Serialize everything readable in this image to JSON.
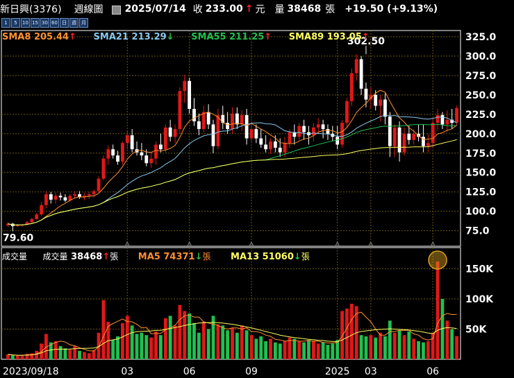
{
  "header": {
    "title": "新日興(3376)",
    "period": "週線圖",
    "date": "2025/07/14",
    "close_label": "收",
    "close": "233.00",
    "close_arrow": "↑",
    "close_unit": "元",
    "volume_label": "量",
    "volume": "38468",
    "volume_unit": "張",
    "change": "+19.50 (+9.13%)"
  },
  "period_buttons": [
    "1",
    "5",
    "10",
    "15",
    "30",
    "60",
    "日",
    "週",
    "月"
  ],
  "price_legend": [
    {
      "label": "SMA8",
      "value": "205.44",
      "arrow": "↑",
      "color": "#ff9030"
    },
    {
      "label": "SMA21",
      "value": "213.29",
      "arrow": "↓",
      "color": "#88c8f0"
    },
    {
      "label": "SMA55",
      "value": "211.25",
      "arrow": "↑",
      "color": "#20c050"
    },
    {
      "label": "SMA89",
      "value": "193.05",
      "arrow": "↑",
      "color": "#ffff60"
    }
  ],
  "volume_legend": {
    "title": "成交量",
    "vol_label": "成交量",
    "vol_value": "38468",
    "vol_arrow": "↑",
    "vol_unit": "張",
    "ma5_label": "MA5",
    "ma5_value": "74371",
    "ma5_arrow": "↓",
    "ma5_unit": "張",
    "ma13_label": "MA13",
    "ma13_value": "51060",
    "ma13_arrow": "↓",
    "ma13_unit": "張"
  },
  "colors": {
    "up": "#e01818",
    "down": "#ffffff",
    "grid": "#6b5a10",
    "vol_up": "#e01818",
    "vol_down": "#20c050",
    "vol_flat": "#cccccc",
    "highlight": "#d8a020"
  },
  "chart_data": {
    "type": "candlestick",
    "price_axis": {
      "ticks": [
        75.0,
        100.0,
        125.0,
        150.0,
        175.0,
        200.0,
        225.0,
        250.0,
        275.0,
        300.0,
        325.0
      ],
      "ylim": [
        55,
        333
      ]
    },
    "volume_axis": {
      "ticks": [
        "50K",
        "100K",
        "150K"
      ],
      "tick_values": [
        50000,
        100000,
        150000
      ],
      "ylim": [
        0,
        185000
      ]
    },
    "x_labels": [
      {
        "label": "2023/09/18",
        "index": 0
      },
      {
        "label": "03",
        "index": 25
      },
      {
        "label": "06",
        "index": 38
      },
      {
        "label": "09",
        "index": 51
      },
      {
        "label": "2025",
        "index": 69
      },
      {
        "label": "03",
        "index": 76
      },
      {
        "label": "06",
        "index": 89
      }
    ],
    "annotations": [
      {
        "text": "302.50",
        "type": "high",
        "index": 75,
        "value": 302.5
      },
      {
        "text": "79.60",
        "type": "low",
        "index": 1,
        "value": 79.6
      }
    ],
    "candles": [
      [
        82,
        86,
        79.6,
        84
      ],
      [
        84,
        85,
        79.6,
        81
      ],
      [
        81,
        84,
        80,
        82
      ],
      [
        82,
        84,
        80,
        83
      ],
      [
        83,
        88,
        82,
        86
      ],
      [
        86,
        92,
        85,
        90
      ],
      [
        90,
        98,
        89,
        96
      ],
      [
        96,
        112,
        94,
        108
      ],
      [
        108,
        126,
        104,
        122
      ],
      [
        122,
        125,
        110,
        115
      ],
      [
        115,
        124,
        110,
        120
      ],
      [
        120,
        124,
        114,
        118
      ],
      [
        118,
        122,
        112,
        114
      ],
      [
        114,
        122,
        112,
        120
      ],
      [
        120,
        126,
        116,
        122
      ],
      [
        122,
        126,
        116,
        118
      ],
      [
        118,
        124,
        114,
        120
      ],
      [
        120,
        125,
        116,
        122
      ],
      [
        122,
        128,
        118,
        126
      ],
      [
        126,
        145,
        124,
        142
      ],
      [
        142,
        172,
        140,
        168
      ],
      [
        168,
        185,
        160,
        180
      ],
      [
        180,
        186,
        168,
        172
      ],
      [
        172,
        178,
        160,
        164
      ],
      [
        164,
        190,
        160,
        188
      ],
      [
        188,
        204,
        180,
        198
      ],
      [
        198,
        206,
        176,
        180
      ],
      [
        180,
        190,
        172,
        176
      ],
      [
        176,
        188,
        166,
        172
      ],
      [
        172,
        180,
        158,
        162
      ],
      [
        162,
        176,
        156,
        168
      ],
      [
        168,
        190,
        160,
        186
      ],
      [
        186,
        200,
        176,
        180
      ],
      [
        180,
        212,
        176,
        208
      ],
      [
        208,
        218,
        190,
        196
      ],
      [
        196,
        212,
        188,
        206
      ],
      [
        206,
        260,
        200,
        255
      ],
      [
        255,
        276,
        240,
        268
      ],
      [
        268,
        272,
        226,
        232
      ],
      [
        232,
        246,
        210,
        216
      ],
      [
        216,
        226,
        198,
        206
      ],
      [
        206,
        236,
        202,
        228
      ],
      [
        228,
        238,
        206,
        212
      ],
      [
        212,
        218,
        175,
        184
      ],
      [
        184,
        232,
        180,
        224
      ],
      [
        224,
        236,
        206,
        214
      ],
      [
        214,
        228,
        200,
        206
      ],
      [
        206,
        234,
        200,
        226
      ],
      [
        226,
        234,
        206,
        212
      ],
      [
        212,
        230,
        204,
        224
      ],
      [
        224,
        232,
        186,
        194
      ],
      [
        194,
        216,
        188,
        206
      ],
      [
        206,
        212,
        188,
        194
      ],
      [
        194,
        206,
        182,
        186
      ],
      [
        186,
        198,
        176,
        180
      ],
      [
        180,
        194,
        174,
        190
      ],
      [
        190,
        198,
        176,
        182
      ],
      [
        182,
        194,
        170,
        176
      ],
      [
        176,
        196,
        170,
        188
      ],
      [
        188,
        206,
        182,
        202
      ],
      [
        202,
        212,
        186,
        196
      ],
      [
        196,
        214,
        192,
        210
      ],
      [
        210,
        218,
        192,
        202
      ],
      [
        202,
        210,
        186,
        198
      ],
      [
        198,
        214,
        190,
        208
      ],
      [
        208,
        220,
        200,
        212
      ],
      [
        212,
        218,
        194,
        206
      ],
      [
        206,
        212,
        192,
        200
      ],
      [
        200,
        210,
        190,
        196
      ],
      [
        196,
        210,
        180,
        186
      ],
      [
        186,
        218,
        182,
        214
      ],
      [
        214,
        246,
        208,
        242
      ],
      [
        242,
        284,
        236,
        278
      ],
      [
        278,
        302.5,
        268,
        296
      ],
      [
        296,
        300,
        250,
        258
      ],
      [
        258,
        266,
        234,
        244
      ],
      [
        244,
        260,
        232,
        250
      ],
      [
        250,
        256,
        230,
        236
      ],
      [
        236,
        250,
        216,
        244
      ],
      [
        244,
        252,
        212,
        222
      ],
      [
        222,
        228,
        170,
        184
      ],
      [
        184,
        212,
        170,
        208
      ],
      [
        208,
        216,
        164,
        176
      ],
      [
        176,
        208,
        172,
        200
      ],
      [
        200,
        210,
        186,
        192
      ],
      [
        192,
        206,
        186,
        200
      ],
      [
        200,
        212,
        190,
        196
      ],
      [
        196,
        212,
        176,
        184
      ],
      [
        184,
        200,
        176,
        188
      ],
      [
        188,
        220,
        182,
        214
      ],
      [
        214,
        232,
        204,
        224
      ],
      [
        224,
        228,
        206,
        212
      ],
      [
        212,
        230,
        202,
        218
      ],
      [
        218,
        232,
        206,
        214
      ],
      [
        214,
        236,
        210,
        233
      ]
    ],
    "volume": [
      8000,
      6500,
      6000,
      5500,
      9000,
      10000,
      14000,
      26000,
      42000,
      28000,
      30000,
      22000,
      18000,
      16000,
      22000,
      14000,
      12000,
      10000,
      15000,
      44000,
      98000,
      62000,
      32000,
      38000,
      60000,
      72000,
      56000,
      42000,
      44000,
      40000,
      36000,
      46000,
      40000,
      68000,
      72000,
      56000,
      90000,
      80000,
      76000,
      60000,
      44000,
      62000,
      50000,
      72000,
      58000,
      56000,
      48000,
      52000,
      44000,
      56000,
      48000,
      40000,
      34000,
      38000,
      30000,
      34000,
      28000,
      26000,
      30000,
      36000,
      34000,
      30000,
      28000,
      32000,
      30000,
      26000,
      28000,
      24000,
      26000,
      32000,
      80000,
      84000,
      92000,
      88000,
      40000,
      38000,
      40000,
      36000,
      44000,
      38000,
      64000,
      44000,
      48000,
      40000,
      46000,
      34000,
      30000,
      28000,
      30000,
      44000,
      162000,
      100000,
      64000,
      50000,
      38468
    ],
    "ma5": [
      8000,
      7250,
      6833,
      6500,
      7000,
      7400,
      8900,
      12900,
      20200,
      24000,
      28000,
      30000,
      28600,
      24000,
      22400,
      19000,
      16400,
      14000,
      13800,
      20600,
      37400,
      54800,
      59200,
      63000,
      66800,
      62400,
      62000,
      58000,
      52000,
      53000,
      42000,
      43000,
      43000,
      49000,
      52000,
      56400,
      66000,
      72000,
      73000,
      70000,
      70000,
      62000,
      60000,
      58000,
      56000,
      52000,
      50000,
      52000,
      52000,
      50000,
      52000,
      46000,
      46000,
      44000,
      40000,
      38000,
      33000,
      32000,
      30000,
      31000,
      31000,
      30000,
      30000,
      31000,
      30000,
      30000,
      28000,
      27000,
      27000,
      28000,
      38000,
      52000,
      66000,
      76000,
      78000,
      70000,
      62000,
      50000,
      40000,
      40000,
      46000,
      46000,
      48000,
      48000,
      48000,
      42000,
      40000,
      34000,
      32000,
      34000,
      60000,
      72000,
      76000,
      74000,
      74371
    ],
    "ma13": [
      8000,
      7250,
      6833,
      6500,
      7000,
      7400,
      8500,
      10600,
      14000,
      15400,
      16500,
      16800,
      16800,
      17000,
      17600,
      18000,
      18200,
      18300,
      18600,
      20800,
      26200,
      30800,
      32200,
      33800,
      37000,
      41000,
      44000,
      45800,
      46200,
      46500,
      47000,
      47800,
      48000,
      49500,
      51000,
      52500,
      54000,
      56000,
      57500,
      59000,
      60000,
      60500,
      60800,
      61000,
      60500,
      60000,
      59000,
      58000,
      56500,
      55000,
      53500,
      52000,
      50000,
      48000,
      46000,
      44000,
      42000,
      40000,
      38500,
      37000,
      36000,
      35000,
      34000,
      33000,
      32500,
      31500,
      31000,
      30000,
      29500,
      29000,
      32000,
      36000,
      40000,
      44000,
      46000,
      47000,
      48000,
      49000,
      49500,
      50000,
      50500,
      50000,
      49500,
      49000,
      48500,
      47500,
      46500,
      45000,
      43500,
      42500,
      48000,
      51000,
      52500,
      52000,
      51060
    ]
  }
}
